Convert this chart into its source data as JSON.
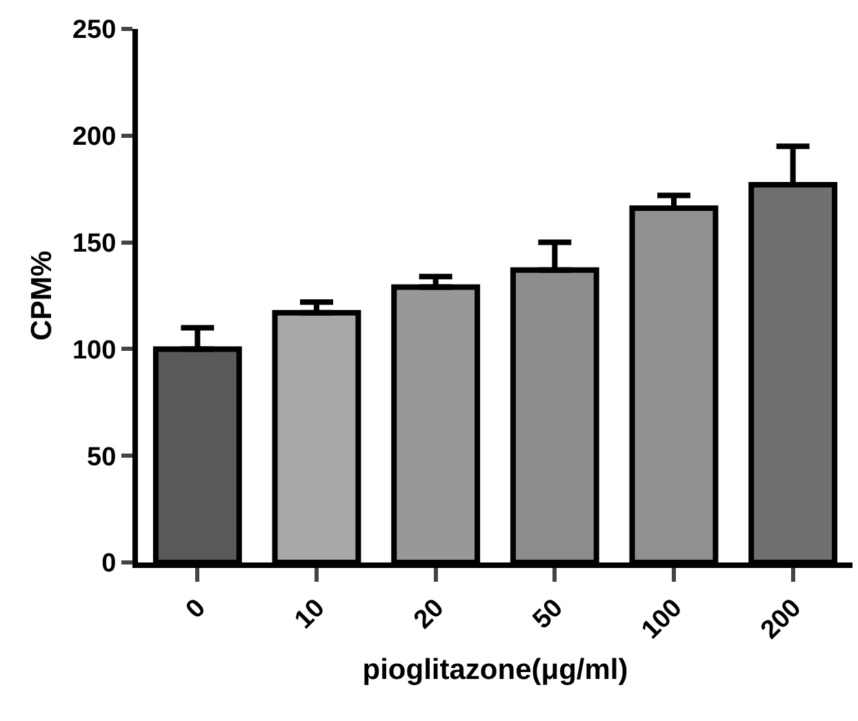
{
  "chart_data": {
    "type": "bar",
    "xlabel": "pioglitazone(μg/ml)",
    "ylabel": "CPM%",
    "categories": [
      "0",
      "10",
      "20",
      "50",
      "100",
      "200"
    ],
    "values": [
      100,
      117,
      129,
      137,
      166,
      177
    ],
    "errors": [
      [
        100,
        110
      ],
      [
        117,
        122
      ],
      [
        129,
        134
      ],
      [
        137,
        150
      ],
      [
        166,
        172
      ],
      [
        177,
        195
      ]
    ],
    "colors": [
      "#5a5a5a",
      "#a8a8a8",
      "#989898",
      "#8c8c8c",
      "#909090",
      "#707070"
    ],
    "ylim": [
      0,
      250
    ],
    "yticks": [
      0,
      50,
      100,
      150,
      200,
      250
    ],
    "grid": false
  }
}
